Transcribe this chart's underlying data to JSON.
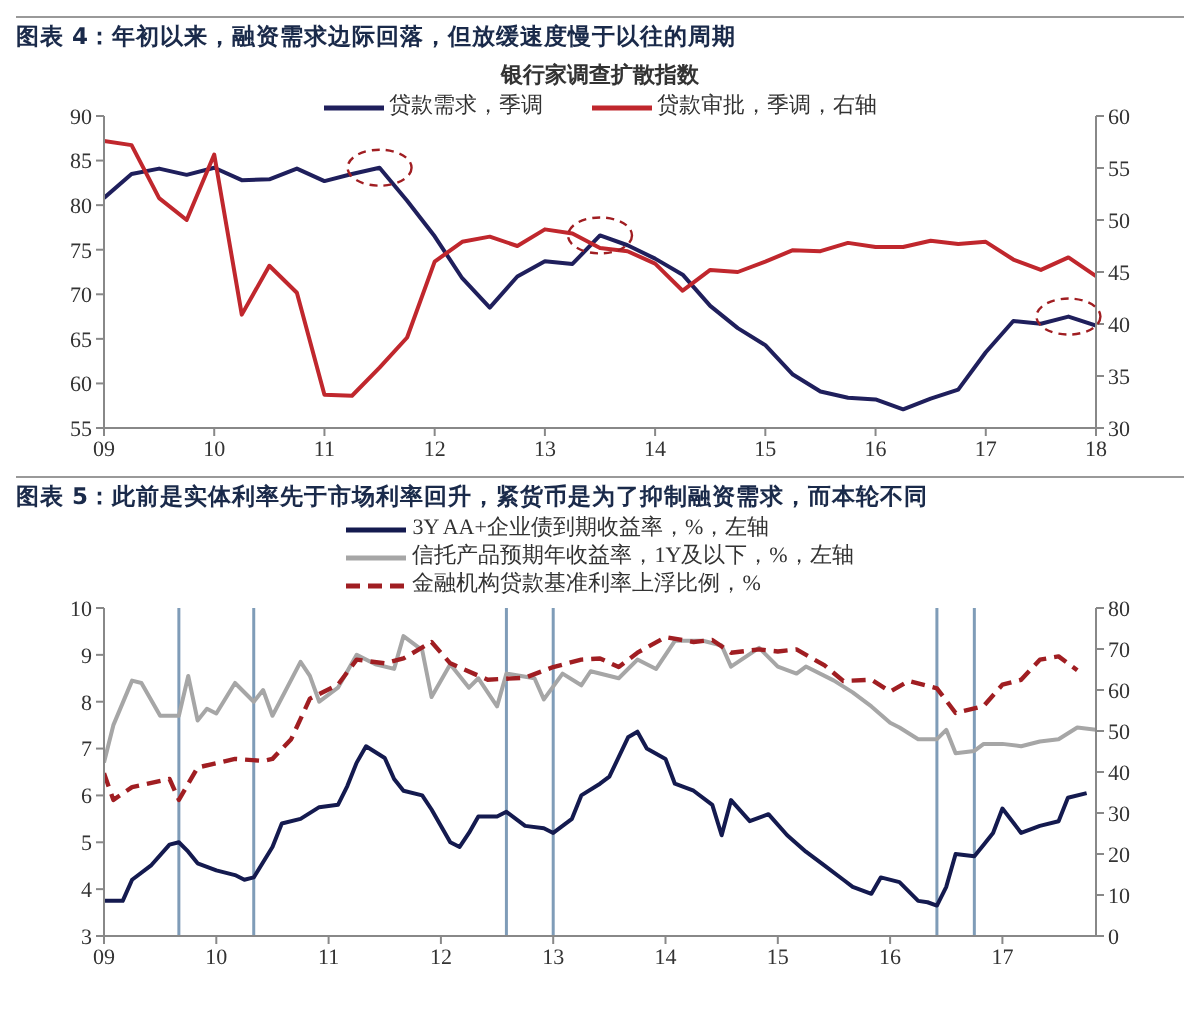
{
  "chart_data": [
    {
      "type": "line",
      "title": "图表 4：年初以来，融资需求边际回落，但放缓速度慢于以往的周期",
      "legend_title": "银行家调查扩散指数",
      "legend": "top",
      "line_style": "solid",
      "xlim": [
        "2009",
        "2018"
      ],
      "xticks": [
        {
          "value": "2009",
          "label": "09"
        },
        {
          "value": "2010",
          "label": "10"
        },
        {
          "value": "2011",
          "label": "11"
        },
        {
          "value": "2012",
          "label": "12"
        },
        {
          "value": "2013",
          "label": "13"
        },
        {
          "value": "2014",
          "label": "14"
        },
        {
          "value": "2015",
          "label": "15"
        },
        {
          "value": "2016",
          "label": "16"
        },
        {
          "value": "2017",
          "label": "17"
        },
        {
          "value": "2018",
          "label": "18"
        }
      ],
      "ylim": [
        55,
        90
      ],
      "yticks": [
        55,
        60,
        65,
        70,
        75,
        80,
        85,
        90
      ],
      "y2lim": [
        30,
        60
      ],
      "y2ticks": [
        30,
        35,
        40,
        45,
        50,
        55,
        60
      ],
      "series": [
        {
          "name": "贷款需求，季调",
          "color": "#1f1f5c",
          "x": [
            "2009-01",
            "2009-04",
            "2009-07",
            "2009-10",
            "2010-01",
            "2010-04",
            "2010-07",
            "2010-10",
            "2011-01",
            "2011-04",
            "2011-07",
            "2011-10",
            "2012-01",
            "2012-04",
            "2012-07",
            "2012-10",
            "2013-01",
            "2013-04",
            "2013-07",
            "2013-10",
            "2014-01",
            "2014-04",
            "2014-07",
            "2014-10",
            "2015-01",
            "2015-04",
            "2015-07",
            "2015-10",
            "2016-01",
            "2016-04",
            "2016-07",
            "2016-10",
            "2017-01",
            "2017-04",
            "2017-07",
            "2017-10",
            "2018-01"
          ],
          "values": [
            80.8,
            83.5,
            84.1,
            83.4,
            84.2,
            82.8,
            82.9,
            84.1,
            82.7,
            83.5,
            84.2,
            80.5,
            76.5,
            71.8,
            68.5,
            72,
            73.7,
            73.4,
            76.6,
            75.5,
            74,
            72.2,
            68.7,
            66.2,
            64.3,
            61,
            59.1,
            58.4,
            58.2,
            57.1,
            58.3,
            59.3,
            63.5,
            67,
            66.7,
            67.5,
            66.5
          ]
        },
        {
          "name": "贷款审批，季调，右轴",
          "color": "#c0272d",
          "axis": "y2",
          "x": [
            "2009-01",
            "2009-04",
            "2009-07",
            "2009-10",
            "2010-01",
            "2010-04",
            "2010-07",
            "2010-10",
            "2011-01",
            "2011-04",
            "2011-07",
            "2011-10",
            "2012-01",
            "2012-04",
            "2012-07",
            "2012-10",
            "2013-01",
            "2013-04",
            "2013-07",
            "2013-10",
            "2014-01",
            "2014-04",
            "2014-07",
            "2014-10",
            "2015-01",
            "2015-04",
            "2015-07",
            "2015-10",
            "2016-01",
            "2016-04",
            "2016-07",
            "2016-10",
            "2017-01",
            "2017-04",
            "2017-07",
            "2017-10",
            "2018-01"
          ],
          "values": [
            57.6,
            57.2,
            52.1,
            50,
            56.3,
            40.9,
            45.6,
            43,
            33.2,
            33.1,
            35.8,
            38.7,
            46,
            47.9,
            48.4,
            47.5,
            49.1,
            48.7,
            47.3,
            47,
            45.8,
            43.2,
            45.2,
            45,
            46,
            47.1,
            47,
            47.8,
            47.4,
            47.4,
            48,
            47.7,
            47.9,
            46.2,
            45.2,
            46.4,
            44.6
          ]
        }
      ]
    },
    {
      "type": "line",
      "title": "图表 5：此前是实体利率先于市场利率回升，紧货币是为了抑制融资需求，而本轮不同",
      "legend": "top",
      "xlim": [
        "2009",
        "2017-11"
      ],
      "xticks": [
        {
          "value": "2009",
          "label": "09"
        },
        {
          "value": "2010",
          "label": "10"
        },
        {
          "value": "2011",
          "label": "11"
        },
        {
          "value": "2012",
          "label": "12"
        },
        {
          "value": "2013",
          "label": "13"
        },
        {
          "value": "2014",
          "label": "14"
        },
        {
          "value": "2015",
          "label": "15"
        },
        {
          "value": "2016",
          "label": "16"
        },
        {
          "value": "2017",
          "label": "17"
        }
      ],
      "ylim": [
        3,
        10
      ],
      "yticks": [
        3,
        4,
        5,
        6,
        7,
        8,
        9,
        10
      ],
      "y2lim": [
        0,
        80
      ],
      "y2ticks": [
        0,
        10,
        20,
        30,
        40,
        50,
        60,
        70,
        80
      ],
      "ref_lines": [
        {
          "axis": "x",
          "value": "2009-09",
          "color": "#7f9cb8"
        },
        {
          "axis": "x",
          "value": "2010-05",
          "color": "#7f9cb8"
        },
        {
          "axis": "x",
          "value": "2012-08",
          "color": "#7f9cb8"
        },
        {
          "axis": "x",
          "value": "2013-01",
          "color": "#7f9cb8"
        },
        {
          "axis": "x",
          "value": "2016-06",
          "color": "#7f9cb8"
        },
        {
          "axis": "x",
          "value": "2016-10",
          "color": "#7f9cb8"
        }
      ],
      "series": [
        {
          "name": "3Y AA+企业债到期收益率，%，左轴",
          "color": "#141a4f",
          "line_style": "solid",
          "x": [
            "2009-01",
            "2009-03",
            "2009-04",
            "2009-06",
            "2009-08",
            "2009-09",
            "2009-10",
            "2009-11",
            "2010-01",
            "2010-03",
            "2010-04",
            "2010-05",
            "2010-07",
            "2010-08",
            "2010-10",
            "2010-12",
            "2011-02",
            "2011-03",
            "2011-04",
            "2011-05",
            "2011-07",
            "2011-08",
            "2011-09",
            "2011-11",
            "2011-12",
            "2012-02",
            "2012-03",
            "2012-04",
            "2012-05",
            "2012-07",
            "2012-08",
            "2012-10",
            "2012-12",
            "2013-01",
            "2013-03",
            "2013-04",
            "2013-06",
            "2013-07",
            "2013-09",
            "2013-10",
            "2013-11",
            "2014-01",
            "2014-02",
            "2014-04",
            "2014-06",
            "2014-07",
            "2014-08",
            "2014-10",
            "2014-12",
            "2015-02",
            "2015-04",
            "2015-06",
            "2015-08",
            "2015-09",
            "2015-11",
            "2015-12",
            "2016-02",
            "2016-04",
            "2016-05",
            "2016-06",
            "2016-07",
            "2016-08",
            "2016-10",
            "2016-11",
            "2016-12",
            "2017-01",
            "2017-03",
            "2017-05",
            "2017-07",
            "2017-08",
            "2017-10"
          ],
          "values": [
            3.75,
            3.75,
            4.2,
            4.5,
            4.95,
            5,
            4.8,
            4.55,
            4.4,
            4.3,
            4.2,
            4.25,
            4.9,
            5.4,
            5.5,
            5.75,
            5.8,
            6.2,
            6.7,
            7.05,
            6.8,
            6.35,
            6.1,
            6,
            5.7,
            5,
            4.9,
            5.2,
            5.55,
            5.55,
            5.65,
            5.35,
            5.3,
            5.2,
            5.5,
            6,
            6.25,
            6.4,
            7.24,
            7.36,
            7,
            6.78,
            6.25,
            6.1,
            5.8,
            5.15,
            5.9,
            5.45,
            5.6,
            5.15,
            4.8,
            4.5,
            4.2,
            4.05,
            3.9,
            4.25,
            4.15,
            3.75,
            3.72,
            3.65,
            4.05,
            4.75,
            4.7,
            4.95,
            5.2,
            5.72,
            5.2,
            5.35,
            5.45,
            5.95,
            6.05
          ]
        },
        {
          "name": "信托产品预期年收益率，1Y及以下，%，左轴",
          "color": "#a6a6a6",
          "line_style": "solid",
          "x": [
            "2009-01",
            "2009-02",
            "2009-04",
            "2009-05",
            "2009-07",
            "2009-09",
            "2009-10",
            "2009-11",
            "2009-12",
            "2010-01",
            "2010-03",
            "2010-05",
            "2010-06",
            "2010-07",
            "2010-10",
            "2010-11",
            "2010-12",
            "2011-02",
            "2011-04",
            "2011-06",
            "2011-08",
            "2011-09",
            "2011-11",
            "2011-12",
            "2012-02",
            "2012-04",
            "2012-05",
            "2012-07",
            "2012-08",
            "2012-11",
            "2012-12",
            "2013-02",
            "2013-04",
            "2013-05",
            "2013-08",
            "2013-10",
            "2013-12",
            "2014-02",
            "2014-05",
            "2014-07",
            "2014-08",
            "2014-11",
            "2015-01",
            "2015-03",
            "2015-04",
            "2015-07",
            "2015-09",
            "2015-11",
            "2016-01",
            "2016-02",
            "2016-04",
            "2016-06",
            "2016-07",
            "2016-08",
            "2016-10",
            "2016-11",
            "2017-01",
            "2017-03",
            "2017-05",
            "2017-07",
            "2017-09",
            "2017-11"
          ],
          "values": [
            6.7,
            7.5,
            8.45,
            8.4,
            7.7,
            7.7,
            8.55,
            7.6,
            7.85,
            7.75,
            8.4,
            8,
            8.25,
            7.7,
            8.85,
            8.55,
            8,
            8.3,
            9,
            8.8,
            8.7,
            9.4,
            9.1,
            8.1,
            8.8,
            8.3,
            8.5,
            7.9,
            8.6,
            8.5,
            8.05,
            8.6,
            8.35,
            8.65,
            8.5,
            8.9,
            8.7,
            9.3,
            9.3,
            9.2,
            8.75,
            9.15,
            8.75,
            8.6,
            8.75,
            8.45,
            8.2,
            7.9,
            7.55,
            7.45,
            7.2,
            7.2,
            7.4,
            6.9,
            6.95,
            7.1,
            7.1,
            7.05,
            7.15,
            7.2,
            7.45,
            7.4
          ]
        },
        {
          "name": "金融机构贷款基准利率上浮比例，%",
          "color": "#a01e22",
          "axis": "y2",
          "line_style": "dashed",
          "x": [
            "2009-01",
            "2009-02",
            "2009-04",
            "2009-08",
            "2009-09",
            "2009-11",
            "2010-03",
            "2010-06",
            "2010-07",
            "2010-09",
            "2010-11",
            "2011-02",
            "2011-04",
            "2011-07",
            "2011-09",
            "2011-12",
            "2012-02",
            "2012-06",
            "2012-10",
            "2013-01",
            "2013-04",
            "2013-06",
            "2013-08",
            "2013-10",
            "2014-01",
            "2014-04",
            "2014-06",
            "2014-08",
            "2014-11",
            "2015-01",
            "2015-03",
            "2015-06",
            "2015-08",
            "2015-11",
            "2016-01",
            "2016-03",
            "2016-06",
            "2016-08",
            "2016-11",
            "2017-01",
            "2017-03",
            "2017-05",
            "2017-07",
            "2017-08",
            "2017-09"
          ],
          "values": [
            39.7,
            33.2,
            36.3,
            38.3,
            33.2,
            41.1,
            43.2,
            42.7,
            43.2,
            48,
            57.9,
            61.3,
            67.4,
            66.5,
            67.7,
            71.7,
            66.5,
            62.5,
            63,
            65.6,
            67.4,
            67.7,
            65.6,
            69.1,
            72.9,
            71.7,
            72.2,
            69.1,
            69.9,
            69.4,
            69.9,
            66,
            62.2,
            62.5,
            59.6,
            62.2,
            60.4,
            54.4,
            56.1,
            61.3,
            62.5,
            67.4,
            68.2,
            66.5,
            64.8
          ]
        }
      ]
    }
  ]
}
